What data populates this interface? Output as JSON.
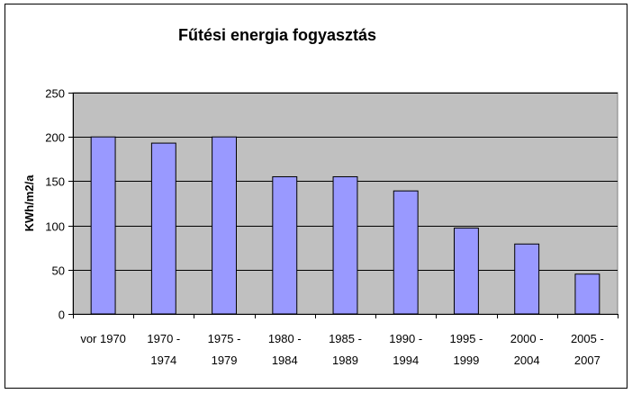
{
  "chart_data": {
    "type": "bar",
    "title": "Fűtési energia fogyasztás",
    "ylabel": "KWh/m2/a",
    "xlabel": "",
    "ylim": [
      0,
      250
    ],
    "yticks": [
      0,
      50,
      100,
      150,
      200,
      250
    ],
    "grid": true,
    "legend": "none",
    "categories": [
      [
        "vor 1970"
      ],
      [
        "1970 -",
        "1974"
      ],
      [
        "1975 -",
        "1979"
      ],
      [
        "1980 -",
        "1984"
      ],
      [
        "1985 -",
        "1989"
      ],
      [
        "1990 -",
        "1994"
      ],
      [
        "1995 -",
        "1999"
      ],
      [
        "2000 -",
        "2004"
      ],
      [
        "2005 -",
        "2007"
      ]
    ],
    "values": [
      200,
      193,
      200,
      155,
      155,
      139,
      97,
      79,
      45
    ],
    "colors": {
      "bar": "#9999ff",
      "plot_background": "#c0c0c0",
      "gridline": "#000000"
    }
  }
}
